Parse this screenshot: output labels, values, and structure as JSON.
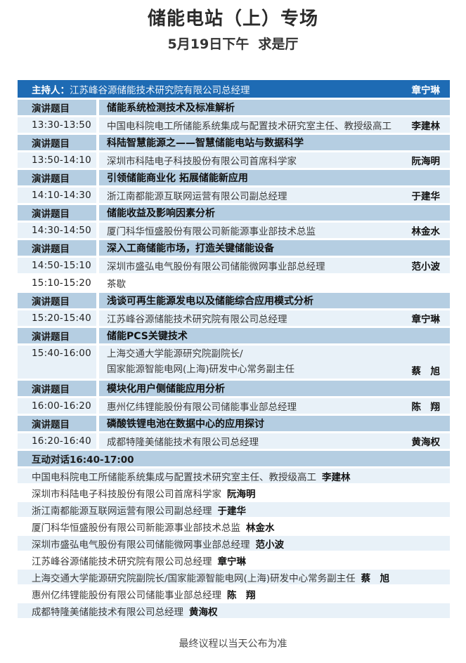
{
  "colors": {
    "header_bg": "#1e6bb4",
    "topic_row_bg": "#b5cee2",
    "session_row_bg": "#e8f1f8",
    "page_bg": "#ffffff"
  },
  "header": {
    "title": "储能电站（上）专场",
    "subtitle": "5月19日下午  求是厅"
  },
  "host": {
    "label": "主持人：",
    "org": "江苏峰谷源储能技术研究院有限公司总经理",
    "name": "章宁琳"
  },
  "agenda": {
    "topic_label": "演讲题目",
    "rows": [
      {
        "kind": "topic",
        "title": "储能系统检测技术及标准解析"
      },
      {
        "kind": "session",
        "time": "13:30-13:50",
        "desc": "中国电科院电工所储能系统集成与配置技术研究室主任、教授级高工",
        "name": "李建林"
      },
      {
        "kind": "topic",
        "title": "科陆智慧能源之——智慧储能电站与数据科学"
      },
      {
        "kind": "session",
        "time": "13:50-14:10",
        "desc": "深圳市科陆电子科技股份有限公司首席科学家",
        "name": "阮海明"
      },
      {
        "kind": "topic",
        "title": "引领储能商业化 拓展储能新应用"
      },
      {
        "kind": "session",
        "time": "14:10-14:30",
        "desc": "浙江南都能源互联网运营有限公司副总经理",
        "name": "于建华"
      },
      {
        "kind": "topic",
        "title": "储能收益及影响因素分析"
      },
      {
        "kind": "session",
        "time": "14:30-14:50",
        "desc": "厦门科华恒盛股份有限公司新能源事业部技术总监",
        "name": "林金水"
      },
      {
        "kind": "topic",
        "title": "深入工商储能市场，打造关键储能设备"
      },
      {
        "kind": "session",
        "time": "14:50-15:10",
        "desc": "深圳市盛弘电气股份有限公司储能微网事业部总经理",
        "name": "范小波"
      },
      {
        "kind": "break",
        "time": "15:10-15:20",
        "desc": "茶歇"
      },
      {
        "kind": "topic",
        "title": "浅谈可再生能源发电以及储能综合应用模式分析"
      },
      {
        "kind": "session",
        "time": "15:20-15:40",
        "desc": "江苏峰谷源储能技术研究院有限公司总经理",
        "name": "章宁琳"
      },
      {
        "kind": "topic",
        "title": "储能PCS关键技术"
      },
      {
        "kind": "session2",
        "time": "15:40-16:00",
        "desc_lines": [
          "上海交通大学能源研究院副院长/",
          "国家能源智能电网(上海)研发中心常务副主任"
        ],
        "name": "蔡　旭"
      },
      {
        "kind": "topic",
        "title": "模块化用户侧储能应用分析"
      },
      {
        "kind": "session",
        "time": "16:00-16:20",
        "desc": "惠州亿纬锂能股份有限公司储能事业部总经理",
        "name": "陈　翔"
      },
      {
        "kind": "topic",
        "title": "磷酸铁锂电池在数据中心的应用探讨"
      },
      {
        "kind": "session",
        "time": "16:20-16:40",
        "desc": "成都特隆美储能技术有限公司总经理",
        "name": "黄海权"
      }
    ]
  },
  "dialogue": {
    "header": "互动对话16:40-17:00",
    "participants": [
      {
        "desc": "中国电科院电工所储能系统集成与配置技术研究室主任、教授级高工",
        "name": "李建林"
      },
      {
        "desc": "深圳市科陆电子科技股份有限公司首席科学家",
        "name": "阮海明"
      },
      {
        "desc": "浙江南都能源互联网运营有限公司副总经理",
        "name": "于建华"
      },
      {
        "desc": "厦门科华恒盛股份有限公司新能源事业部技术总监",
        "name": "林金水"
      },
      {
        "desc": "深圳市盛弘电气股份有限公司储能微网事业部总经理",
        "name": "范小波"
      },
      {
        "desc": "江苏峰谷源储能技术研究院有限公司总经理",
        "name": "章宁琳"
      },
      {
        "desc": "上海交通大学能源研究院副院长/国家能源智能电网(上海)研发中心常务副主任",
        "name": "蔡　旭"
      },
      {
        "desc": "惠州亿纬锂能股份有限公司储能事业部总经理",
        "name": "陈　翔"
      },
      {
        "desc": "成都特隆美储能技术有限公司总经理",
        "name": "黄海权"
      }
    ]
  },
  "footer": {
    "note": "最终议程以当天公布为准"
  }
}
